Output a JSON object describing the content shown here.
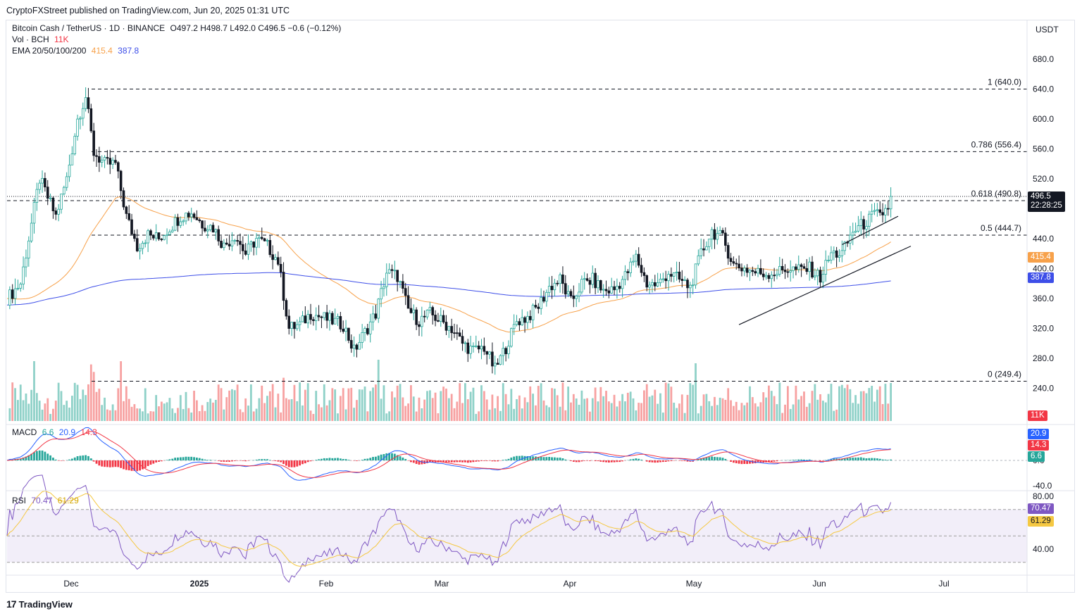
{
  "header": {
    "published": "CryptoFXStreet published on TradingView.com, Jun 20, 2025 01:31 UTC"
  },
  "legend": {
    "symbol": "Bitcoin Cash / TetherUS · 1D · BINANCE",
    "ohlc": "O497.2 H498.7 L492.0 C496.5 −0.6 (−0.12%)",
    "vol_label": "Vol · BCH",
    "vol_value": "11K",
    "ema_label": "EMA 20/50/100/200",
    "ema_val1": "415.4",
    "ema_val2": "387.8",
    "macd_label": "MACD",
    "macd_hist": "6.6",
    "macd_line": "20.9",
    "macd_signal": "14.3",
    "rsi_label": "RSI",
    "rsi_value": "70.47",
    "rsi_ma": "61.29"
  },
  "currency_label": "USDT",
  "price_tag": {
    "price": "496.5",
    "countdown": "22:28:25"
  },
  "footer": {
    "brand": "TradingView",
    "logo": "17"
  },
  "colors": {
    "up": "#26a69a",
    "down": "#131722",
    "vol_up": "#8fd1c8",
    "vol_down": "#f7a1a1",
    "ema50": "#f7a14a",
    "ema200": "#3d4ee8",
    "macd": "#2962ff",
    "signal": "#f23645",
    "rsi": "#7e57c2",
    "rsi_ma": "#f5c842"
  },
  "chart_data": [
    {
      "type": "candlestick",
      "title": "Bitcoin Cash / TetherUS · 1D · BINANCE",
      "y_ticks": [
        680,
        640,
        600,
        560,
        520,
        480,
        440,
        400,
        360,
        320,
        280,
        240
      ],
      "ylim": [
        200,
        705
      ],
      "x_ticks": [
        "Dec",
        "2025",
        "Feb",
        "Mar",
        "Apr",
        "May",
        "Jun",
        "Jul"
      ],
      "fib_levels": [
        {
          "ratio": "1",
          "price": 640.0,
          "label": "1 (640.0)"
        },
        {
          "ratio": "0.786",
          "price": 556.4,
          "label": "0.786 (556.4)"
        },
        {
          "ratio": "0.618",
          "price": 490.8,
          "label": "0.618 (490.8)"
        },
        {
          "ratio": "0.5",
          "price": 444.7,
          "label": "0.5 (444.7)"
        },
        {
          "ratio": "0",
          "price": 249.4,
          "label": "0 (249.4)"
        }
      ],
      "last_close": 496.5,
      "ema_values": {
        "ema_a": 415.4,
        "ema_b": 387.8
      },
      "close_path": [
        [
          0,
          360
        ],
        [
          5,
          380
        ],
        [
          8,
          440
        ],
        [
          12,
          520
        ],
        [
          18,
          470
        ],
        [
          22,
          520
        ],
        [
          26,
          600
        ],
        [
          29,
          630
        ],
        [
          32,
          555
        ],
        [
          36,
          540
        ],
        [
          40,
          540
        ],
        [
          44,
          470
        ],
        [
          48,
          430
        ],
        [
          52,
          445
        ],
        [
          56,
          440
        ],
        [
          60,
          455
        ],
        [
          64,
          470
        ],
        [
          68,
          475
        ],
        [
          72,
          460
        ],
        [
          76,
          455
        ],
        [
          80,
          430
        ],
        [
          84,
          445
        ],
        [
          88,
          420
        ],
        [
          92,
          440
        ],
        [
          96,
          430
        ],
        [
          100,
          410
        ],
        [
          104,
          320
        ],
        [
          108,
          325
        ],
        [
          112,
          340
        ],
        [
          116,
          335
        ],
        [
          120,
          330
        ],
        [
          124,
          325
        ],
        [
          128,
          290
        ],
        [
          132,
          315
        ],
        [
          136,
          340
        ],
        [
          140,
          395
        ],
        [
          144,
          390
        ],
        [
          148,
          345
        ],
        [
          152,
          330
        ],
        [
          156,
          340
        ],
        [
          160,
          330
        ],
        [
          164,
          320
        ],
        [
          168,
          300
        ],
        [
          172,
          290
        ],
        [
          176,
          295
        ],
        [
          180,
          265
        ],
        [
          184,
          295
        ],
        [
          188,
          330
        ],
        [
          192,
          335
        ],
        [
          196,
          350
        ],
        [
          200,
          375
        ],
        [
          204,
          385
        ],
        [
          208,
          355
        ],
        [
          212,
          380
        ],
        [
          216,
          385
        ],
        [
          220,
          370
        ],
        [
          224,
          372
        ],
        [
          228,
          390
        ],
        [
          232,
          415
        ],
        [
          236,
          380
        ],
        [
          240,
          378
        ],
        [
          244,
          395
        ],
        [
          248,
          385
        ],
        [
          252,
          375
        ],
        [
          256,
          420
        ],
        [
          260,
          450
        ],
        [
          264,
          440
        ],
        [
          268,
          405
        ],
        [
          272,
          400
        ],
        [
          276,
          395
        ],
        [
          280,
          393
        ],
        [
          284,
          395
        ],
        [
          288,
          400
        ],
        [
          292,
          398
        ],
        [
          296,
          400
        ],
        [
          300,
          388
        ],
        [
          304,
          420
        ],
        [
          308,
          420
        ],
        [
          312,
          450
        ],
        [
          316,
          460
        ],
        [
          320,
          472
        ],
        [
          322,
          470
        ],
        [
          325,
          483
        ],
        [
          326,
          496.5
        ]
      ],
      "macd_ticks": [
        0,
        -40
      ],
      "rsi_ticks": [
        80,
        40
      ],
      "rsi_bands": [
        70,
        50,
        30
      ]
    }
  ]
}
